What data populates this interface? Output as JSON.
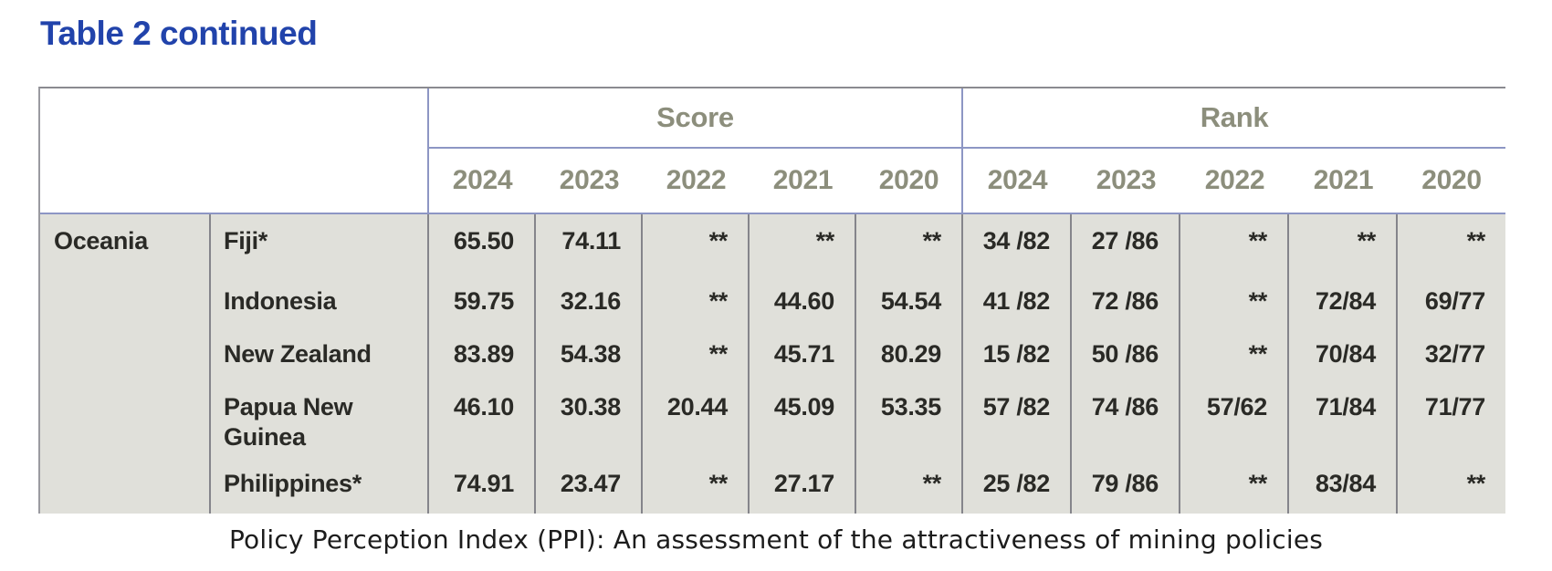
{
  "title": "Table 2 continued",
  "caption": "Policy Perception Index (PPI): An assessment of the attractiveness of mining policies",
  "table": {
    "group_headers": {
      "score": "Score",
      "rank": "Rank"
    },
    "score_years": [
      "2024",
      "2023",
      "2022",
      "2021",
      "2020"
    ],
    "rank_years": [
      "2024",
      "2023",
      "2022",
      "2021",
      "2020"
    ],
    "region": "Oceania",
    "rows": [
      {
        "country": "Fiji*",
        "score": [
          "65.50",
          "74.11",
          "**",
          "**",
          "**"
        ],
        "rank": [
          "34 /82",
          "27 /86",
          "**",
          "**",
          "**"
        ]
      },
      {
        "country": "Indonesia",
        "score": [
          "59.75",
          "32.16",
          "**",
          "44.60",
          "54.54"
        ],
        "rank": [
          "41 /82",
          "72 /86",
          "**",
          "72/84",
          "69/77"
        ]
      },
      {
        "country": "New Zealand",
        "score": [
          "83.89",
          "54.38",
          "**",
          "45.71",
          "80.29"
        ],
        "rank": [
          "15 /82",
          "50 /86",
          "**",
          "70/84",
          "32/77"
        ]
      },
      {
        "country": "Papua New Guinea",
        "score": [
          "46.10",
          "30.38",
          "20.44",
          "45.09",
          "53.35"
        ],
        "rank": [
          "57 /82",
          "74 /86",
          "57/62",
          "71/84",
          "71/77"
        ]
      },
      {
        "country": "Philippines*",
        "score": [
          "74.91",
          "23.47",
          "**",
          "27.17",
          "**"
        ],
        "rank": [
          "25 /82",
          "79 /86",
          "**",
          "83/84",
          "**"
        ]
      }
    ]
  },
  "colors": {
    "title_blue": "#2143ab",
    "header_text_olive": "#8c8e7c",
    "cell_background": "#e0e0da",
    "border_gray": "#85858b",
    "border_blue": "#8d96c4",
    "data_text": "#2a2a26"
  }
}
